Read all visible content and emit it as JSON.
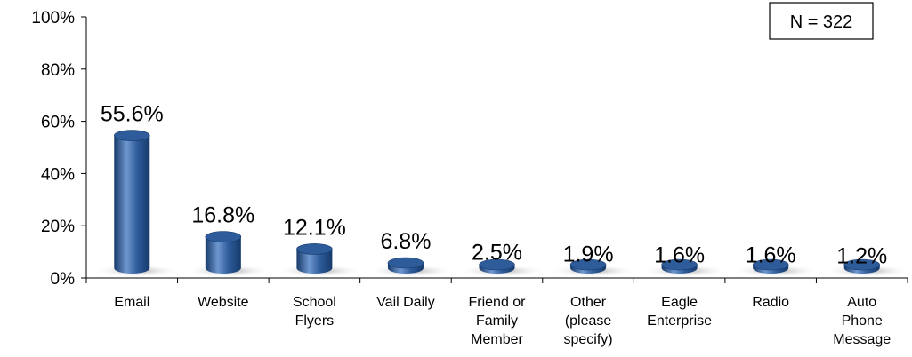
{
  "chart_data": {
    "type": "bar",
    "categories": [
      "Email",
      "Website",
      "School Flyers",
      "Vail Daily",
      "Friend or Family Member",
      "Other (please specify)",
      "Eagle Enterprise",
      "Radio",
      "Auto Phone Message"
    ],
    "category_lines": [
      [
        "Email"
      ],
      [
        "Website"
      ],
      [
        "School",
        "Flyers"
      ],
      [
        "Vail Daily"
      ],
      [
        "Friend or",
        "Family",
        "Member"
      ],
      [
        "Other",
        "(please",
        "specify)"
      ],
      [
        "Eagle",
        "Enterprise"
      ],
      [
        "Radio"
      ],
      [
        "Auto",
        "Phone",
        "Message"
      ]
    ],
    "values": [
      55.6,
      16.8,
      12.1,
      6.8,
      2.5,
      1.9,
      1.6,
      1.6,
      1.2
    ],
    "data_labels": [
      "55.6%",
      "16.8%",
      "12.1%",
      "6.8%",
      "2.5%",
      "1.9%",
      "1.6%",
      "1.6%",
      "1.2%"
    ],
    "ylim": [
      0,
      100
    ],
    "y_ticks": [
      0,
      20,
      40,
      60,
      80,
      100
    ],
    "y_tick_labels": [
      "0%",
      "20%",
      "40%",
      "60%",
      "80%",
      "100%"
    ],
    "title": "",
    "xlabel": "",
    "ylabel": "",
    "grid": false,
    "legend": "none",
    "annotation": "N = 322",
    "bar_color": "#2e5c9a",
    "bar_highlight": "#6f97cf",
    "bar_shadow": "#163a6b"
  }
}
